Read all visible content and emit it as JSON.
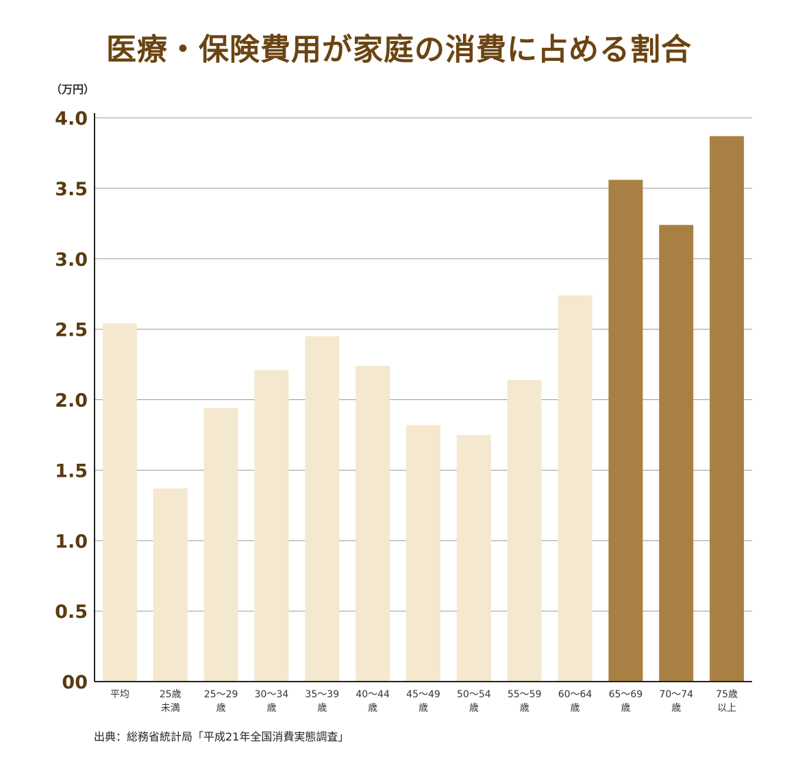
{
  "title": "医療・保険費用が家庭の消費に占める割合",
  "unit_label": "（万円）",
  "source": "出典：総務省統計局「平成21年全国消費実態調査」",
  "colors": {
    "light_bar": "#f4e8cf",
    "dark_bar": "#a98043",
    "title": "#6b4412",
    "grid": "#999999",
    "axis": "#222222"
  },
  "chart_data": {
    "type": "bar",
    "title": "医療・保険費用が家庭の消費に占める割合",
    "ylabel": "（万円）",
    "ylim": [
      0,
      4.0
    ],
    "grid": true,
    "ytick_labels": [
      "00",
      "0.5",
      "1.0",
      "1.5",
      "2.0",
      "2.5",
      "3.0",
      "3.5",
      "4.0"
    ],
    "categories": [
      [
        "平均"
      ],
      [
        "25歳",
        "未満"
      ],
      [
        "25〜29",
        "歳"
      ],
      [
        "30〜34",
        "歳"
      ],
      [
        "35〜39",
        "歳"
      ],
      [
        "40〜44",
        "歳"
      ],
      [
        "45〜49",
        "歳"
      ],
      [
        "50〜54",
        "歳"
      ],
      [
        "55〜59",
        "歳"
      ],
      [
        "60〜64",
        "歳"
      ],
      [
        "65〜69",
        "歳"
      ],
      [
        "70〜74",
        "歳"
      ],
      [
        "75歳",
        "以上"
      ]
    ],
    "values": [
      2.54,
      1.37,
      1.94,
      2.21,
      2.45,
      2.24,
      1.82,
      1.75,
      2.14,
      2.74,
      3.56,
      3.24,
      3.87
    ],
    "highlighted": [
      false,
      false,
      false,
      false,
      false,
      false,
      false,
      false,
      false,
      false,
      true,
      true,
      true
    ]
  }
}
